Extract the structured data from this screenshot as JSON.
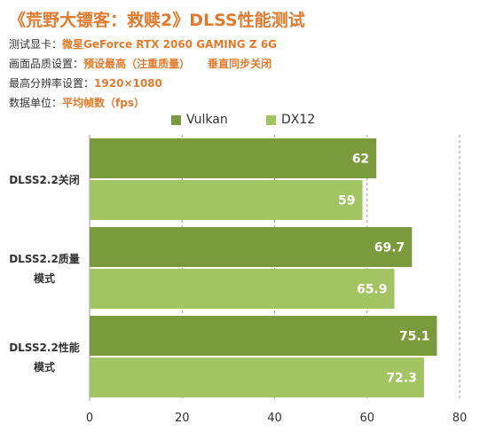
{
  "header": {
    "title": "《荒野大镖客：救赎2》DLSS性能测试",
    "info": [
      {
        "label": "测试显卡：",
        "value": "微星GeForce RTX 2060 GAMING Z 6G"
      },
      {
        "label": "画面品质设置：",
        "value": "预设最高（注重质量）",
        "value2": "垂直同步关闭"
      },
      {
        "label": "最高分辨率设置：",
        "value": "1920×1080"
      },
      {
        "label": "数据单位：",
        "value": "平均帧数（fps）"
      }
    ]
  },
  "colors": {
    "title": "#E27A2E",
    "vulkan": "#7A9A3C",
    "dx12": "#A2C462",
    "label_text": "#ffffff",
    "axis_text": "#333333",
    "grid": "#999999"
  },
  "chart_data": {
    "type": "bar",
    "orientation": "horizontal",
    "categories": [
      [
        "DLSS2.2关闭"
      ],
      [
        "DLSS2.2质量",
        "模式"
      ],
      [
        "DLSS2.2性能",
        "模式"
      ]
    ],
    "series": [
      {
        "name": "Vulkan",
        "values": [
          62,
          69.7,
          75.1
        ]
      },
      {
        "name": "DX12",
        "values": [
          59,
          65.9,
          72.3
        ]
      }
    ],
    "value_labels": [
      [
        "62",
        "69.7",
        "75.1"
      ],
      [
        "59",
        "65.9",
        "72.3"
      ]
    ],
    "xlim": [
      0,
      80
    ],
    "xticks": [
      0,
      20,
      40,
      60,
      80
    ],
    "grid": true,
    "legend": "top-center"
  }
}
